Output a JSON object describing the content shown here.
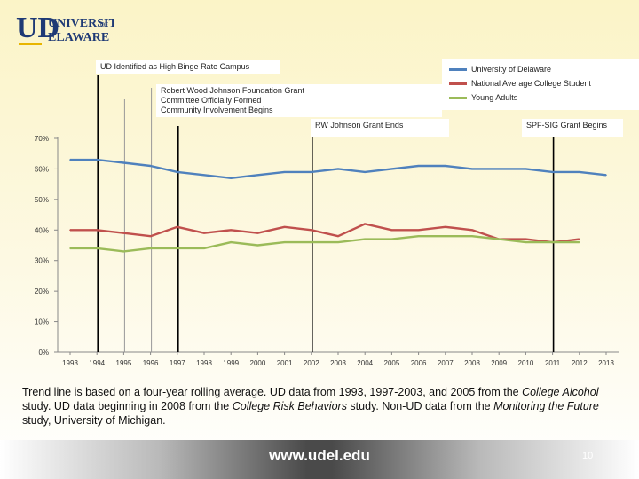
{
  "logo": {
    "text_line1": "UNIVERSITY",
    "text_of": "OF",
    "text_line2": "ELAWARE",
    "letters": "UD"
  },
  "annotations": [
    {
      "lines": [
        "UD Identified as High Binge Rate Campus"
      ]
    },
    {
      "lines": [
        "Robert Wood Johnson Foundation Grant",
        "Committee Officially Formed",
        "Community Involvement Begins"
      ]
    },
    {
      "lines": [
        "RW Johnson Grant Ends"
      ]
    },
    {
      "lines": [
        "SPF-SIG Grant Begins"
      ]
    }
  ],
  "caption": {
    "p1": "Trend line is based on a four-year rolling average. UD data from 1993, 1997-2003, and 2005 from the ",
    "i1": "College Alcohol",
    "p2": " study. UD data beginning in 2008 from the ",
    "i2": "College Risk Behaviors",
    "p3": " study.  Non-UD data from the ",
    "i3": "Monitoring the Future",
    "p4": "  study, University of Michigan."
  },
  "footer": {
    "url": "www.udel.edu",
    "page_number": "10"
  },
  "colors": {
    "ud": "#4f81bd",
    "national": "#c0504d",
    "young": "#9bbb59",
    "logo_blue": "#1f3a75",
    "logo_gold": "#e8b500"
  },
  "chart_data": {
    "type": "line",
    "x": [
      1993,
      1994,
      1995,
      1996,
      1997,
      1998,
      1999,
      2000,
      2001,
      2002,
      2003,
      2004,
      2005,
      2006,
      2007,
      2008,
      2009,
      2010,
      2011,
      2012,
      2013
    ],
    "xlabels": [
      "1993",
      "1994",
      "1995",
      "1996",
      "1997",
      "1998",
      "1999",
      "2000",
      "2001",
      "2002",
      "2003",
      "2004",
      "2005",
      "2006",
      "2007",
      "2008",
      "2009",
      "2010",
      "2011",
      "2012",
      "2013"
    ],
    "yticks": [
      "0%",
      "10%",
      "20%",
      "30%",
      "40%",
      "50%",
      "60%",
      "70%"
    ],
    "ylim": [
      0,
      70
    ],
    "series": [
      {
        "name": "University of Delaware",
        "color": "#4f81bd",
        "values": [
          63,
          63,
          62,
          61,
          59,
          58,
          57,
          58,
          59,
          59,
          60,
          59,
          60,
          61,
          61,
          60,
          60,
          60,
          59,
          59,
          58
        ]
      },
      {
        "name": "National Average College Student",
        "color": "#c0504d",
        "values": [
          40,
          40,
          39,
          38,
          41,
          39,
          40,
          39,
          41,
          40,
          38,
          42,
          40,
          40,
          41,
          40,
          37,
          37,
          36,
          37,
          null
        ]
      },
      {
        "name": "Young Adults",
        "color": "#9bbb59",
        "values": [
          34,
          34,
          33,
          34,
          34,
          34,
          36,
          35,
          36,
          36,
          36,
          37,
          37,
          38,
          38,
          38,
          37,
          36,
          36,
          36,
          null
        ]
      }
    ],
    "event_years": [
      1994,
      1995,
      1996,
      1997,
      2002,
      2011
    ],
    "event_colors": [
      "#000000",
      "#999999",
      "#999999",
      "#000000",
      "#000000",
      "#000000"
    ],
    "legend_position": "top-right",
    "grid": false
  }
}
